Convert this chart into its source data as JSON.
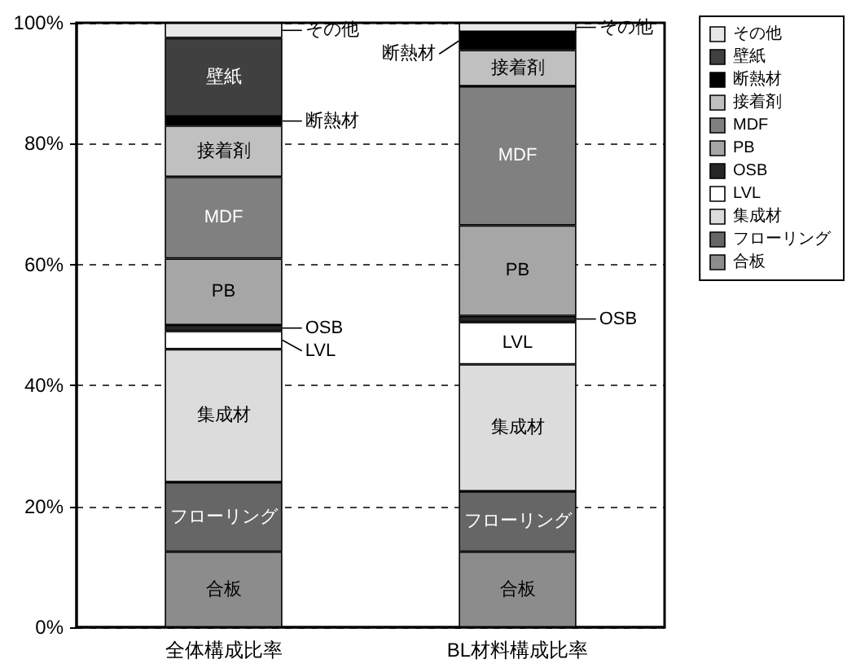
{
  "chart_data": {
    "type": "bar",
    "stacked": true,
    "categories": [
      "全体構成比率",
      "BL材料構成比率"
    ],
    "series": [
      {
        "name": "合板",
        "color": "#8c8c8c",
        "values": [
          12.5,
          12.5
        ]
      },
      {
        "name": "フローリング",
        "color": "#666666",
        "values": [
          11.5,
          10
        ]
      },
      {
        "name": "集成材",
        "color": "#dcdcdc",
        "values": [
          22,
          21
        ]
      },
      {
        "name": "LVL",
        "color": "#ffffff",
        "values": [
          3,
          7
        ]
      },
      {
        "name": "OSB",
        "color": "#262626",
        "values": [
          1,
          1
        ]
      },
      {
        "name": "PB",
        "color": "#a6a6a6",
        "values": [
          11,
          15
        ]
      },
      {
        "name": "MDF",
        "color": "#808080",
        "values": [
          13.5,
          23
        ]
      },
      {
        "name": "接着剤",
        "color": "#c0c0c0",
        "values": [
          8.5,
          6
        ]
      },
      {
        "name": "断熱材",
        "color": "#000000",
        "values": [
          1.5,
          3
        ]
      },
      {
        "name": "壁紙",
        "color": "#404040",
        "values": [
          13,
          0
        ]
      },
      {
        "name": "その他",
        "color": "#e8e8e8",
        "values": [
          2.5,
          1.5
        ]
      }
    ],
    "ylim": [
      0,
      100
    ],
    "yticks": [
      {
        "value": 0,
        "label": "0%"
      },
      {
        "value": 20,
        "label": "20%"
      },
      {
        "value": 40,
        "label": "40%"
      },
      {
        "value": 60,
        "label": "60%"
      },
      {
        "value": 80,
        "label": "80%"
      },
      {
        "value": 100,
        "label": "100%"
      }
    ],
    "grid": "y",
    "legend": "right"
  }
}
